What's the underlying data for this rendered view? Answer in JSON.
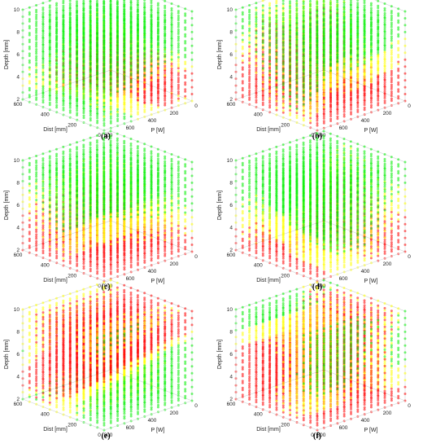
{
  "chart_data": [
    {
      "type": "scatter",
      "caption": "(a)",
      "xlabel": "Dist [mm]",
      "ylabel": "P [W]",
      "zlabel": "Depth [mm]",
      "xticks": [
        "0",
        "200",
        "400",
        "600"
      ],
      "yticks": [
        "0",
        "200",
        "400",
        "600",
        "800"
      ],
      "zticks": [
        "2",
        "4",
        "6",
        "8",
        "10"
      ],
      "xlim": [
        0,
        600
      ],
      "ylim": [
        0,
        800
      ],
      "zlim": [
        2,
        10
      ],
      "colors": {
        "high": "#ff0000",
        "mid": "#ffff00",
        "low": "#00ee00"
      }
    },
    {
      "type": "scatter",
      "caption": "(b)",
      "xlabel": "Dist [mm]",
      "ylabel": "P [W]",
      "zlabel": "Depth [mm]",
      "xticks": [
        "0",
        "200",
        "400",
        "600"
      ],
      "yticks": [
        "0",
        "200",
        "400",
        "600",
        "800"
      ],
      "zticks": [
        "2",
        "4",
        "6",
        "8",
        "10"
      ],
      "xlim": [
        0,
        600
      ],
      "ylim": [
        0,
        800
      ],
      "zlim": [
        2,
        10
      ],
      "colors": {
        "high": "#ff0000",
        "mid": "#ffff00",
        "low": "#00ee00"
      }
    },
    {
      "type": "scatter",
      "caption": "(c)",
      "xlabel": "Dist [mm]",
      "ylabel": "P [W]",
      "zlabel": "Depth [mm]",
      "xticks": [
        "0",
        "200",
        "400",
        "600"
      ],
      "yticks": [
        "0",
        "200",
        "400",
        "600",
        "800"
      ],
      "zticks": [
        "2",
        "4",
        "6",
        "8",
        "10"
      ],
      "xlim": [
        0,
        600
      ],
      "ylim": [
        0,
        800
      ],
      "zlim": [
        2,
        10
      ],
      "colors": {
        "high": "#ff0000",
        "mid": "#ffff00",
        "low": "#00ee00"
      }
    },
    {
      "type": "scatter",
      "caption": "(d)",
      "xlabel": "Dist [mm]",
      "ylabel": "P [W]",
      "zlabel": "Depth [mm]",
      "xticks": [
        "0",
        "200",
        "400",
        "600"
      ],
      "yticks": [
        "0",
        "200",
        "400",
        "600",
        "800"
      ],
      "zticks": [
        "2",
        "4",
        "6",
        "8",
        "10"
      ],
      "xlim": [
        0,
        600
      ],
      "ylim": [
        0,
        800
      ],
      "zlim": [
        2,
        10
      ],
      "colors": {
        "high": "#ff0000",
        "mid": "#ffff00",
        "low": "#00ee00"
      }
    },
    {
      "type": "scatter",
      "caption": "(e)",
      "xlabel": "Dist [mm]",
      "ylabel": "P [W]",
      "zlabel": "Depth [mm]",
      "xticks": [
        "0",
        "200",
        "400",
        "600"
      ],
      "yticks": [
        "0",
        "200",
        "400",
        "600",
        "800"
      ],
      "zticks": [
        "2",
        "4",
        "6",
        "8",
        "10"
      ],
      "xlim": [
        0,
        600
      ],
      "ylim": [
        0,
        800
      ],
      "zlim": [
        2,
        10
      ],
      "colors": {
        "high": "#ff0000",
        "mid": "#ffff00",
        "low": "#00ee00"
      }
    },
    {
      "type": "scatter",
      "caption": "(f)",
      "xlabel": "Dist [mm]",
      "ylabel": "P [W]",
      "zlabel": "Depth [mm]",
      "xticks": [
        "0",
        "200",
        "400",
        "600"
      ],
      "yticks": [
        "0",
        "200",
        "400",
        "600",
        "800"
      ],
      "zticks": [
        "2",
        "4",
        "6",
        "8",
        "10"
      ],
      "xlim": [
        0,
        600
      ],
      "ylim": [
        0,
        800
      ],
      "zlim": [
        2,
        10
      ],
      "colors": {
        "high": "#ff0000",
        "mid": "#ffff00",
        "low": "#00ee00"
      }
    }
  ]
}
